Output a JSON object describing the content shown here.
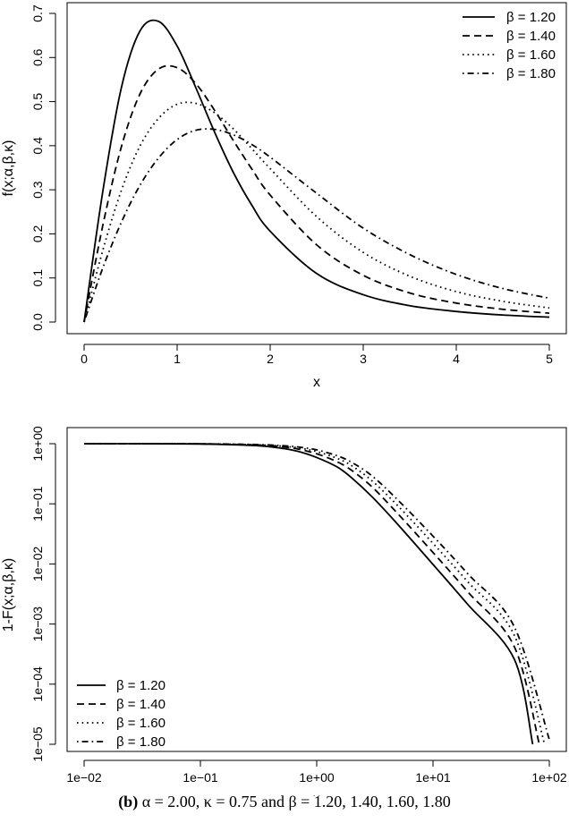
{
  "chart_data": [
    {
      "type": "line",
      "xlabel": "x",
      "ylabel": "f(x;α,β,κ)",
      "xlim": [
        0,
        5
      ],
      "ylim": [
        0,
        0.7
      ],
      "x_ticks": [
        "0",
        "1",
        "2",
        "3",
        "4",
        "5"
      ],
      "y_ticks": [
        "0.0",
        "0.1",
        "0.2",
        "0.3",
        "0.4",
        "0.5",
        "0.6",
        "0.7"
      ],
      "legend_position": "top-right",
      "series": [
        {
          "name": "β = 1.20",
          "line_style": "solid",
          "x": [
            0,
            0.2,
            0.4,
            0.6,
            0.8,
            1.0,
            1.2,
            1.4,
            1.6,
            1.8,
            2.0,
            2.5,
            3.0,
            3.5,
            4.0,
            4.5,
            5.0
          ],
          "y": [
            0.0,
            0.295,
            0.531,
            0.66,
            0.682,
            0.626,
            0.532,
            0.432,
            0.341,
            0.266,
            0.206,
            0.11,
            0.062,
            0.037,
            0.024,
            0.016,
            0.011
          ]
        },
        {
          "name": "β = 1.40",
          "line_style": "dashed",
          "x": [
            0,
            0.2,
            0.4,
            0.6,
            0.8,
            1.0,
            1.2,
            1.4,
            1.6,
            1.8,
            2.0,
            2.5,
            3.0,
            3.5,
            4.0,
            4.5,
            5.0
          ],
          "y": [
            0.0,
            0.218,
            0.397,
            0.517,
            0.574,
            0.577,
            0.541,
            0.481,
            0.413,
            0.348,
            0.288,
            0.175,
            0.106,
            0.066,
            0.043,
            0.029,
            0.02
          ]
        },
        {
          "name": "β = 1.60",
          "line_style": "dotted",
          "x": [
            0,
            0.2,
            0.4,
            0.6,
            0.8,
            1.0,
            1.2,
            1.4,
            1.6,
            1.8,
            2.0,
            2.5,
            3.0,
            3.5,
            4.0,
            4.5,
            5.0
          ],
          "y": [
            0.0,
            0.162,
            0.298,
            0.399,
            0.462,
            0.494,
            0.496,
            0.475,
            0.439,
            0.394,
            0.348,
            0.239,
            0.158,
            0.104,
            0.069,
            0.047,
            0.032
          ]
        },
        {
          "name": "β = 1.80",
          "line_style": "dotdash",
          "x": [
            0,
            0.2,
            0.4,
            0.6,
            0.8,
            1.0,
            1.2,
            1.4,
            1.6,
            1.8,
            2.0,
            2.5,
            3.0,
            3.5,
            4.0,
            4.5,
            5.0
          ],
          "y": [
            0.0,
            0.122,
            0.226,
            0.31,
            0.372,
            0.414,
            0.435,
            0.437,
            0.425,
            0.403,
            0.374,
            0.292,
            0.213,
            0.153,
            0.108,
            0.076,
            0.054
          ]
        }
      ]
    },
    {
      "type": "line",
      "xlabel": "x",
      "ylabel": "1-F(x;α,β,κ)",
      "xscale": "log",
      "yscale": "log",
      "xlim": [
        0.01,
        100
      ],
      "ylim": [
        1e-05,
        1
      ],
      "x_ticks": [
        "1e−02",
        "1e−01",
        "1e+00",
        "1e+01",
        "1e+02"
      ],
      "y_ticks": [
        "1e−05",
        "1e−04",
        "1e−03",
        "1e−02",
        "1e−01",
        "1e+00"
      ],
      "legend_position": "bottom-left",
      "series": [
        {
          "name": "β = 1.20",
          "line_style": "solid",
          "x": [
            0.01,
            0.03,
            0.1,
            0.3,
            0.5,
            0.7,
            1.0,
            1.5,
            2.0,
            3.0,
            5.0,
            10,
            20,
            50,
            72
          ],
          "y": [
            1.0,
            0.999,
            0.99,
            0.93,
            0.84,
            0.74,
            0.59,
            0.41,
            0.27,
            0.13,
            0.045,
            0.0098,
            0.0021,
            0.00026,
            1e-05
          ]
        },
        {
          "name": "β = 1.40",
          "line_style": "dashed",
          "x": [
            0.01,
            0.03,
            0.1,
            0.3,
            0.5,
            0.7,
            1.0,
            1.5,
            2.0,
            3.0,
            5.0,
            10,
            20,
            50,
            82
          ],
          "y": [
            1.0,
            0.999,
            0.993,
            0.95,
            0.89,
            0.81,
            0.68,
            0.5,
            0.36,
            0.19,
            0.068,
            0.0155,
            0.0034,
            0.00042,
            1e-05
          ]
        },
        {
          "name": "β = 1.60",
          "line_style": "dotted",
          "x": [
            0.01,
            0.03,
            0.1,
            0.3,
            0.5,
            0.7,
            1.0,
            1.5,
            2.0,
            3.0,
            5.0,
            10,
            20,
            50,
            91
          ],
          "y": [
            1.0,
            0.999,
            0.995,
            0.96,
            0.91,
            0.85,
            0.74,
            0.57,
            0.43,
            0.24,
            0.092,
            0.022,
            0.005,
            0.00065,
            1e-05
          ]
        },
        {
          "name": "β = 1.80",
          "line_style": "dotdash",
          "x": [
            0.01,
            0.03,
            0.1,
            0.3,
            0.5,
            0.7,
            1.0,
            1.5,
            2.0,
            3.0,
            5.0,
            10,
            20,
            50,
            100
          ],
          "y": [
            1.0,
            0.999,
            0.997,
            0.97,
            0.93,
            0.88,
            0.79,
            0.63,
            0.49,
            0.29,
            0.115,
            0.029,
            0.0068,
            0.0009,
            1.2e-05
          ]
        }
      ]
    }
  ],
  "caption": {
    "label": "(b)",
    "text": " α = 2.00, κ = 0.75 and β = 1.20, 1.40, 1.60, 1.80"
  }
}
